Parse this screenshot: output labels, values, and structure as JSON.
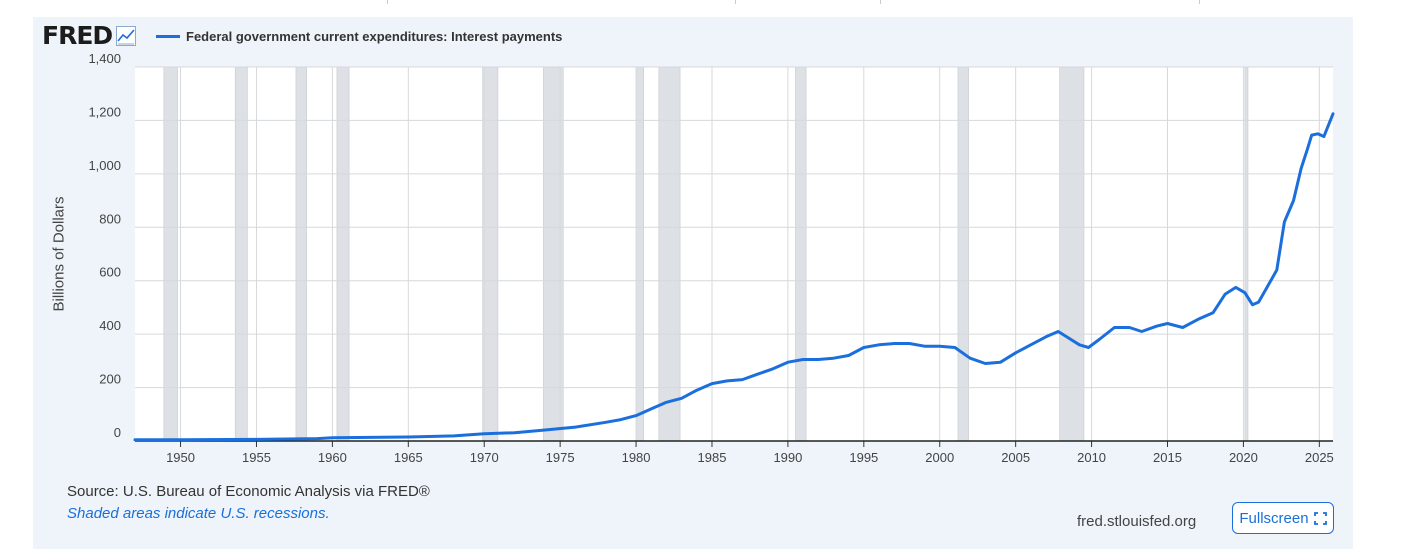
{
  "logo": {
    "text": "FRED"
  },
  "legend": {
    "label": "Federal government current expenditures: Interest payments",
    "color": "#1a6fdc"
  },
  "source_text": "Source: U.S. Bureau of Economic Analysis via FRED®",
  "shaded_note": "Shaded areas indicate U.S. recessions.",
  "site": "fred.stlouisfed.org",
  "fullscreen_label": "Fullscreen",
  "icons": {
    "logo": "line-chart-icon",
    "fullscreen": "expand-icon"
  },
  "chart_data": {
    "type": "line",
    "ylabel": "Billions of Dollars",
    "xlim": [
      1947.0,
      2025.9
    ],
    "ylim": [
      0,
      1400
    ],
    "yticks": [
      0,
      200,
      400,
      600,
      800,
      1000,
      1200,
      1400
    ],
    "ytick_labels": [
      "0",
      "200",
      "400",
      "600",
      "800",
      "1,000",
      "1,200",
      "1,400"
    ],
    "xticks": [
      1950,
      1955,
      1960,
      1965,
      1970,
      1975,
      1980,
      1985,
      1990,
      1995,
      2000,
      2005,
      2010,
      2015,
      2020,
      2025
    ],
    "grid": true,
    "legend_position": "top-left",
    "line_color": "#1a6fdc",
    "recession_color": "#dde1e5",
    "recessions": [
      [
        1948.9,
        1949.8
      ],
      [
        1953.6,
        1954.4
      ],
      [
        1957.6,
        1958.3
      ],
      [
        1960.3,
        1961.1
      ],
      [
        1969.9,
        1970.9
      ],
      [
        1973.9,
        1975.2
      ],
      [
        1980.0,
        1980.5
      ],
      [
        1981.5,
        1982.9
      ],
      [
        1990.5,
        1991.2
      ],
      [
        2001.2,
        2001.9
      ],
      [
        2007.9,
        2009.5
      ],
      [
        2020.1,
        2020.3
      ]
    ],
    "series": [
      {
        "x": [
          1947,
          1950,
          1955,
          1959,
          1960,
          1965,
          1968,
          1970,
          1972,
          1974,
          1976,
          1978,
          1979,
          1980,
          1981,
          1982,
          1983,
          1984,
          1985,
          1986,
          1987,
          1988,
          1989,
          1990,
          1991,
          1992,
          1993,
          1994,
          1995,
          1996,
          1997,
          1998,
          1999,
          2000,
          2001,
          2002,
          2003,
          2004,
          2005,
          2006,
          2007,
          2007.8,
          2008.5,
          2009.2,
          2009.8,
          2010.5,
          2011.5,
          2012.5,
          2013.3,
          2014.3,
          2015,
          2016,
          2017,
          2018,
          2018.8,
          2019.5,
          2020.1,
          2020.6,
          2021,
          2021.6,
          2022.2,
          2022.7,
          2023.3,
          2023.8,
          2024.2,
          2024.5,
          2024.9,
          2025.3,
          2025.9
        ],
        "y": [
          5,
          5,
          6,
          9,
          12,
          15,
          19,
          27,
          31,
          41,
          52,
          70,
          80,
          95,
          120,
          145,
          160,
          190,
          215,
          225,
          230,
          250,
          270,
          295,
          305,
          305,
          310,
          320,
          350,
          360,
          365,
          365,
          355,
          355,
          350,
          310,
          290,
          295,
          330,
          360,
          390,
          410,
          385,
          360,
          350,
          380,
          425,
          425,
          410,
          430,
          440,
          425,
          455,
          480,
          550,
          575,
          555,
          510,
          520,
          580,
          640,
          820,
          900,
          1020,
          1090,
          1145,
          1150,
          1140,
          1225
        ]
      }
    ]
  }
}
